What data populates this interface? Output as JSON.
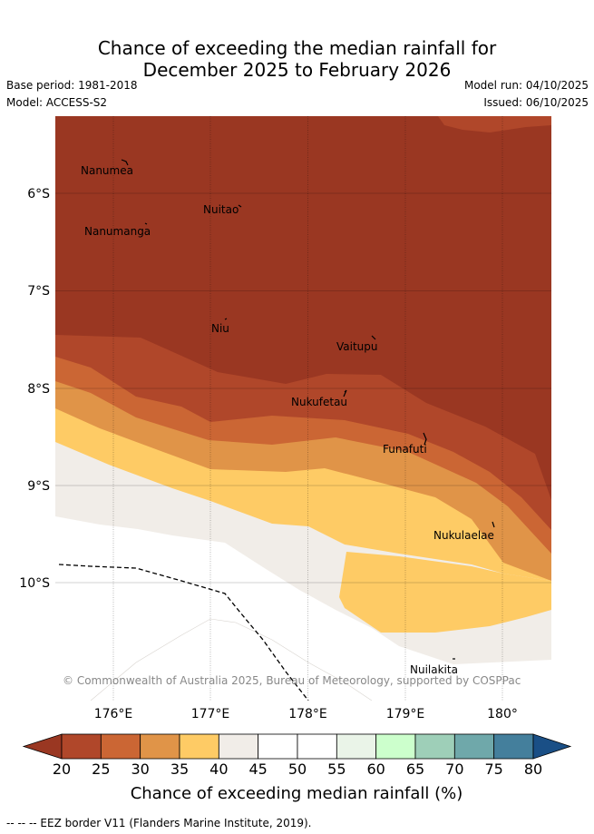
{
  "header": {
    "title_line1": "Chance of exceeding the median rainfall for",
    "title_line2": "December 2025 to February 2026",
    "base_period": "Base period: 1981-2018",
    "model": "Model: ACCESS-S2",
    "model_run": "Model run: 04/10/2025",
    "issued": "Issued: 06/10/2025"
  },
  "map": {
    "lat_labels": [
      "6°S",
      "7°S",
      "8°S",
      "9°S",
      "10°S"
    ],
    "lon_labels": [
      "176°E",
      "177°E",
      "178°E",
      "179°E",
      "180°"
    ],
    "places": [
      "Nanumea",
      "Nuitao",
      "Nanumanga",
      "Niu",
      "Vaitupu",
      "Nukufetau",
      "Funafuti",
      "Nukulaelae",
      "Nuilakita"
    ],
    "copyright": "© Commonwealth of Australia 2025, Bureau of Meteorology, supported by COSPPac"
  },
  "colorbar": {
    "ticks": [
      "20",
      "25",
      "30",
      "35",
      "40",
      "45",
      "50",
      "55",
      "60",
      "65",
      "70",
      "75",
      "80"
    ],
    "colors": [
      "#b0472a",
      "#cb6634",
      "#e09448",
      "#fecb65",
      "#f1ede8",
      "#ffffff",
      "#ffffff",
      "#eaf4e8",
      "#ccffcc",
      "#9ecfb8",
      "#6fa8aa",
      "#447f9c"
    ],
    "under_color": "#9a3722",
    "over_color": "#1a4f86",
    "title": "Chance of exceeding median rainfall (%)"
  },
  "legend": {
    "eez_note": "-- -- -- EEZ border V11 (Flanders Marine Institute, 2019)."
  }
}
